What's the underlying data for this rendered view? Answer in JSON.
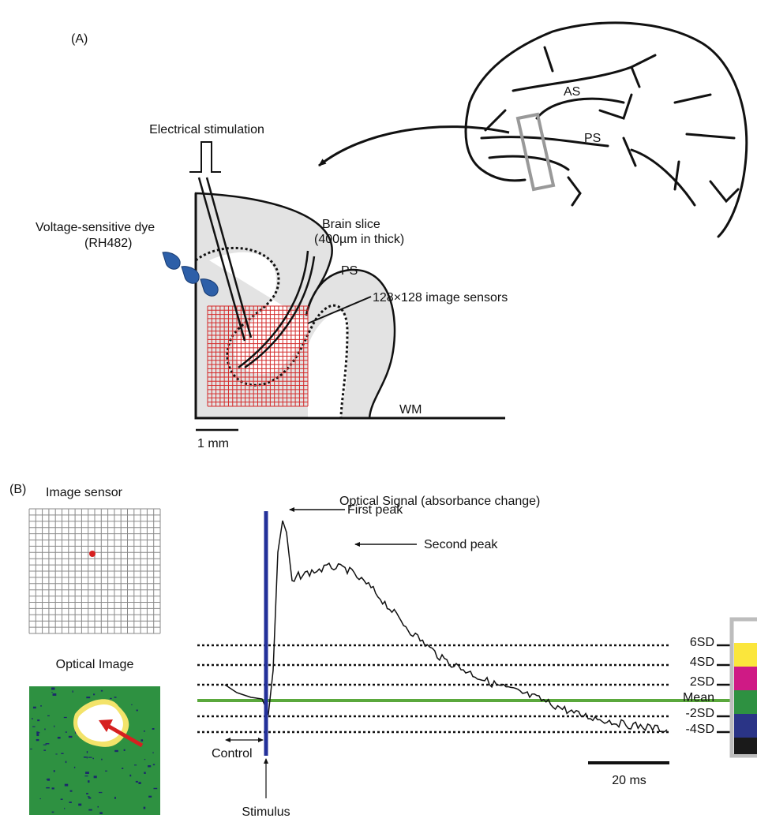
{
  "panel_a": {
    "label": "(A)",
    "stimulation": "Electrical stimulation",
    "dye": [
      "Voltage-sensitive dye",
      "(RH482)"
    ],
    "slice": [
      "Brain slice",
      "(400µm in thick)"
    ],
    "slice_ps": "PS",
    "sensors": "128×128 image sensors",
    "wm": "WM",
    "scale": "1 mm",
    "brain": {
      "as": "AS",
      "ps": "PS"
    }
  },
  "panel_b": {
    "label": "(B)",
    "image_sensor": "Image sensor",
    "optical_image": "Optical Image",
    "signal_title": "Optical Signal  (absorbance change)",
    "first_peak": "First peak",
    "second_peak": "Second peak",
    "levels": [
      "6SD",
      "4SD",
      "2SD",
      "Mean",
      "-2SD",
      "-4SD"
    ],
    "control": "Control",
    "stimulus": "Stimulus",
    "scale": "20 ms"
  }
}
